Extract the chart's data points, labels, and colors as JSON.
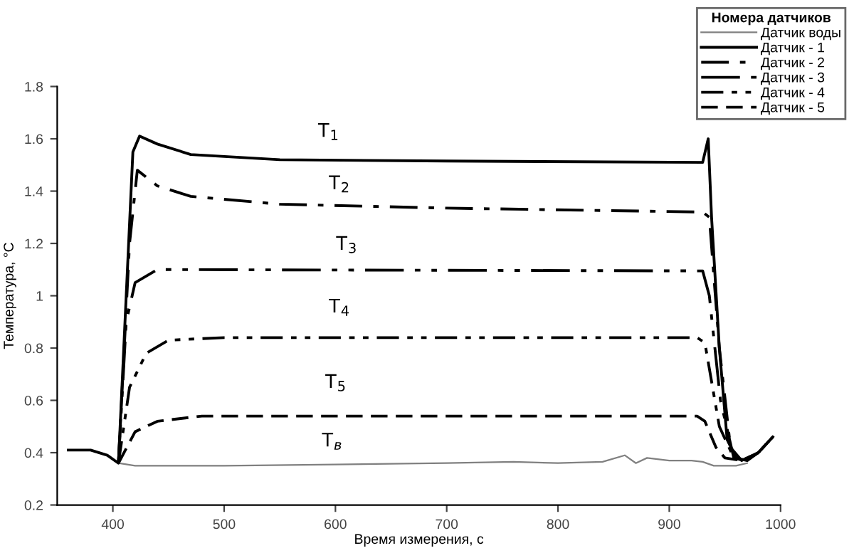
{
  "chart_data": {
    "type": "line",
    "xlabel": "Время измерения, с",
    "ylabel": "Температура, °C",
    "legend_title": "Номера датчиков",
    "xlim": [
      350,
      1000
    ],
    "xticks": [
      400,
      500,
      600,
      700,
      800,
      900,
      1000
    ],
    "ylim": [
      0.2,
      1.8
    ],
    "yticks": [
      0.2,
      0.4,
      0.6,
      0.8,
      1,
      1.2,
      1.4,
      1.6,
      1.8
    ],
    "grid": false,
    "legend": "top right",
    "series": [
      {
        "name": "Датчик воды",
        "color": "#808080",
        "line_style": "solid",
        "x": [
          360,
          380,
          395,
          405,
          420,
          500,
          600,
          700,
          760,
          800,
          840,
          860,
          870,
          880,
          900,
          920,
          930,
          940,
          960,
          970
        ],
        "values": [
          0.41,
          0.41,
          0.39,
          0.36,
          0.35,
          0.35,
          0.355,
          0.36,
          0.365,
          0.36,
          0.365,
          0.39,
          0.36,
          0.38,
          0.37,
          0.37,
          0.365,
          0.35,
          0.35,
          0.36
        ]
      },
      {
        "name": "Датчик - 1",
        "color": "#000000",
        "line_style": "solid",
        "x": [
          360,
          380,
          395,
          405,
          412,
          418,
          424,
          440,
          470,
          550,
          700,
          930,
          935,
          938,
          945,
          952,
          960,
          970,
          980,
          993
        ],
        "values": [
          0.41,
          0.41,
          0.39,
          0.36,
          1.0,
          1.55,
          1.61,
          1.58,
          1.54,
          1.52,
          1.515,
          1.51,
          1.6,
          1.3,
          0.8,
          0.45,
          0.38,
          0.37,
          0.4,
          0.46
        ]
      },
      {
        "name": "Датчик - 2",
        "color": "#000000",
        "line_style": "dashdot",
        "x": [
          405,
          415,
          422,
          440,
          470,
          550,
          700,
          930,
          936,
          945,
          955,
          965,
          980,
          993
        ],
        "values": [
          0.36,
          1.2,
          1.48,
          1.42,
          1.38,
          1.35,
          1.335,
          1.32,
          1.3,
          0.8,
          0.42,
          0.37,
          0.4,
          0.46
        ]
      },
      {
        "name": "Датчик - 3",
        "color": "#000000",
        "line_style": "longdashdotdot",
        "x": [
          405,
          412,
          420,
          440,
          930,
          936,
          946,
          958,
          968,
          980,
          993
        ],
        "values": [
          0.36,
          0.9,
          1.05,
          1.1,
          1.095,
          1.0,
          0.6,
          0.38,
          0.37,
          0.4,
          0.46
        ]
      },
      {
        "name": "Датчик - 4",
        "color": "#000000",
        "line_style": "dashdotdot",
        "x": [
          405,
          415,
          430,
          450,
          500,
          925,
          932,
          945,
          958,
          968,
          980,
          993
        ],
        "values": [
          0.36,
          0.65,
          0.78,
          0.83,
          0.84,
          0.84,
          0.82,
          0.5,
          0.38,
          0.37,
          0.4,
          0.46
        ]
      },
      {
        "name": "Датчик - 5",
        "color": "#000000",
        "line_style": "dashed",
        "x": [
          405,
          420,
          440,
          480,
          925,
          932,
          942,
          950,
          965,
          980,
          993
        ],
        "values": [
          0.36,
          0.48,
          0.52,
          0.54,
          0.54,
          0.52,
          0.42,
          0.38,
          0.37,
          0.4,
          0.46
        ]
      }
    ],
    "annotations": [
      "T$_{1}$",
      "T$_{2}$",
      "T$_{3}$",
      "T$_{4}$",
      "T$_{5}$",
      "T$_{в}$"
    ]
  }
}
